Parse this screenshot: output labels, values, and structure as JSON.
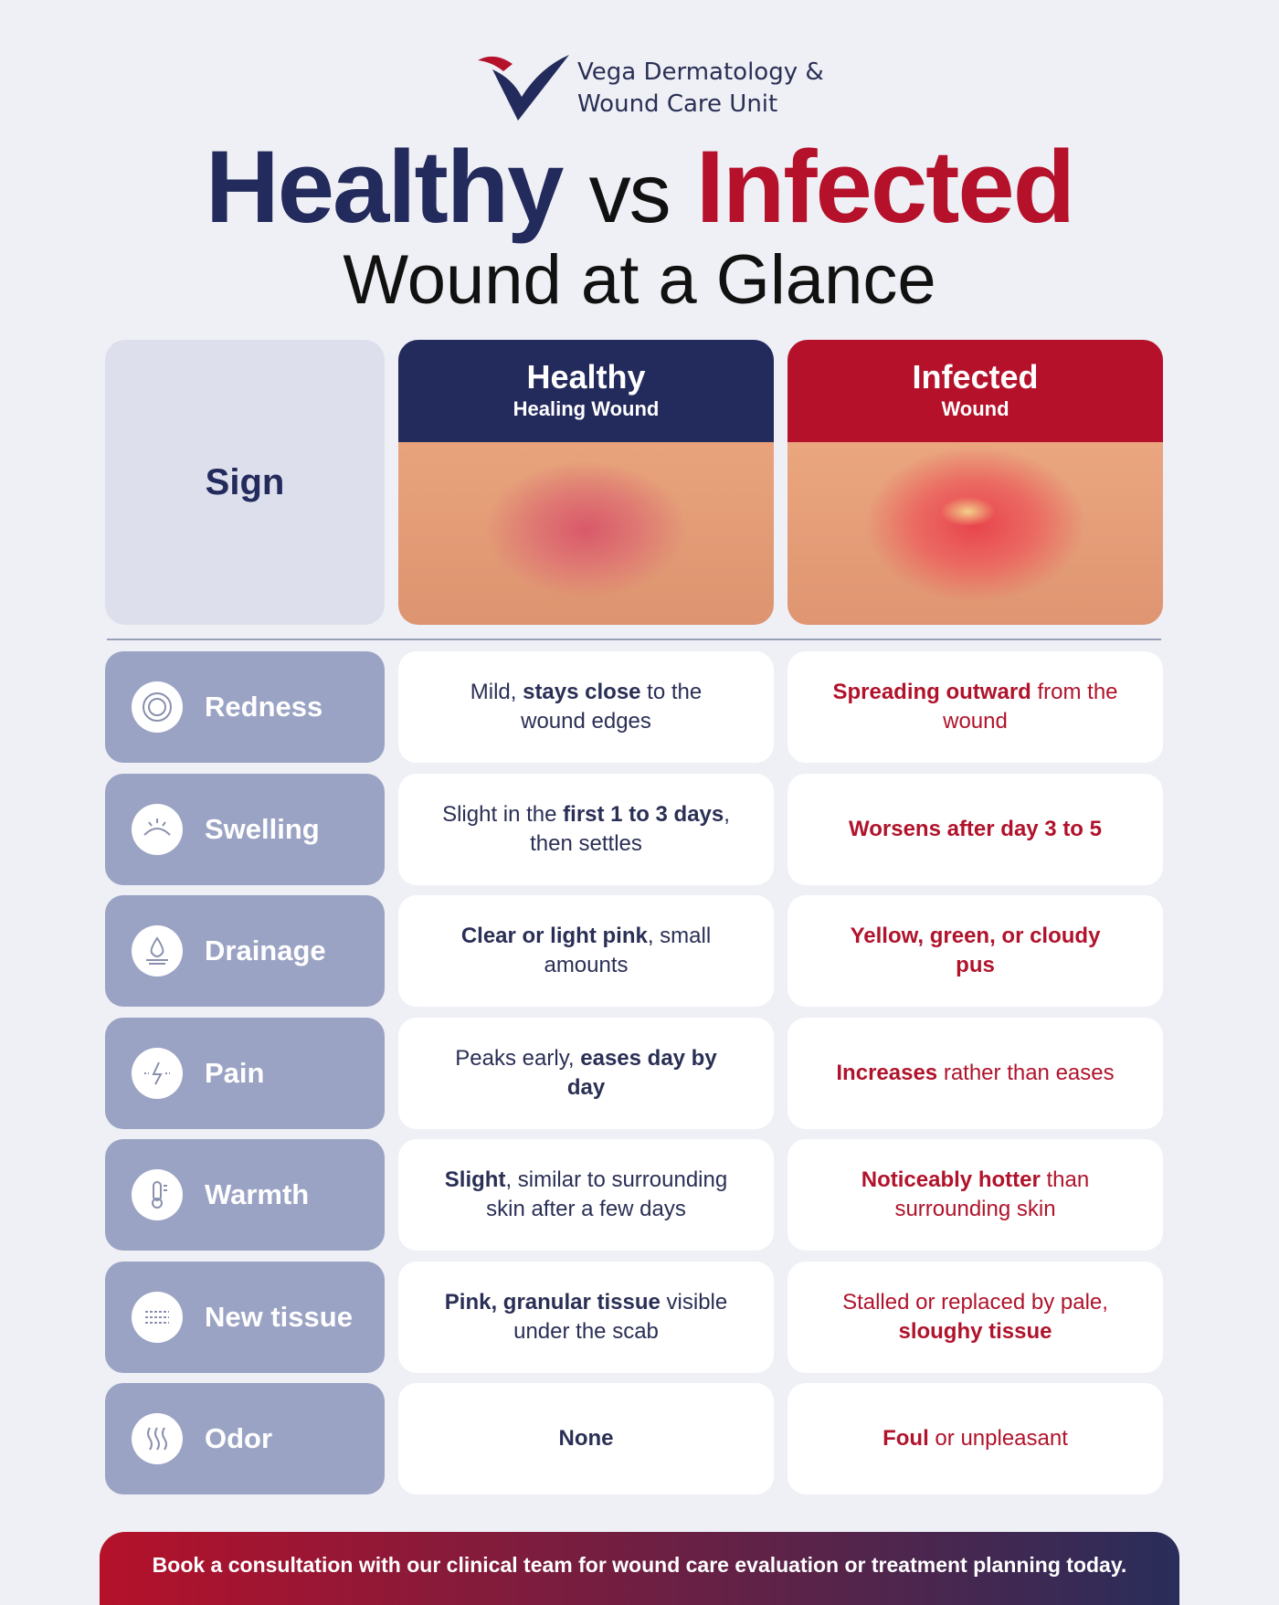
{
  "brand": {
    "name_lines": [
      "Vega Dermatology &",
      "Wound Care Unit"
    ]
  },
  "title": {
    "healthy": "Healthy",
    "vs": "vs",
    "infected": "Infected",
    "subtitle": "Wound at a Glance"
  },
  "table": {
    "sign_header": "Sign",
    "healthy_header": {
      "title": "Healthy",
      "subtitle": "Healing Wound"
    },
    "infected_header": {
      "title": "Infected",
      "subtitle": "Wound"
    },
    "rows": [
      {
        "sign": "Redness",
        "healthy": [
          {
            "text": "Mild, ",
            "bold": false
          },
          {
            "text": "stays close",
            "bold": true
          },
          {
            "text": " to the wound edges",
            "bold": false
          }
        ],
        "infected": [
          {
            "text": "Spreading outward",
            "bold": true
          },
          {
            "text": " from the wound",
            "bold": false
          }
        ]
      },
      {
        "sign": "Swelling",
        "healthy": [
          {
            "text": "Slight in the ",
            "bold": false
          },
          {
            "text": "first 1 to 3 days",
            "bold": true
          },
          {
            "text": ", then settles",
            "bold": false
          }
        ],
        "infected": [
          {
            "text": "Worsens after day 3 to 5",
            "bold": true
          }
        ]
      },
      {
        "sign": "Drainage",
        "healthy": [
          {
            "text": "Clear or light pink",
            "bold": true
          },
          {
            "text": ", small amounts",
            "bold": false
          }
        ],
        "infected": [
          {
            "text": "Yellow, green, or cloudy pus",
            "bold": true
          }
        ]
      },
      {
        "sign": "Pain",
        "healthy": [
          {
            "text": "Peaks early, ",
            "bold": false
          },
          {
            "text": "eases day by day",
            "bold": true
          }
        ],
        "infected": [
          {
            "text": "Increases",
            "bold": true
          },
          {
            "text": " rather than eases",
            "bold": false
          }
        ]
      },
      {
        "sign": "Warmth",
        "healthy": [
          {
            "text": "Slight",
            "bold": true
          },
          {
            "text": ", similar to surrounding skin after a few days",
            "bold": false
          }
        ],
        "infected": [
          {
            "text": "Noticeably hotter",
            "bold": true
          },
          {
            "text": " than surrounding skin",
            "bold": false
          }
        ]
      },
      {
        "sign": "New tissue",
        "healthy": [
          {
            "text": "Pink, granular tissue",
            "bold": true
          },
          {
            "text": " visible under the scab",
            "bold": false
          }
        ],
        "infected": [
          {
            "text": "Stalled or replaced by pale, ",
            "bold": false
          },
          {
            "text": "sloughy tissue",
            "bold": true
          }
        ]
      },
      {
        "sign": "Odor",
        "healthy": [
          {
            "text": "None",
            "bold": true
          }
        ],
        "infected": [
          {
            "text": "Foul",
            "bold": true
          },
          {
            "text": " or unpleasant",
            "bold": false
          }
        ]
      }
    ]
  },
  "footer": "Book a consultation with our clinical team for wound care evaluation or treatment planning today."
}
